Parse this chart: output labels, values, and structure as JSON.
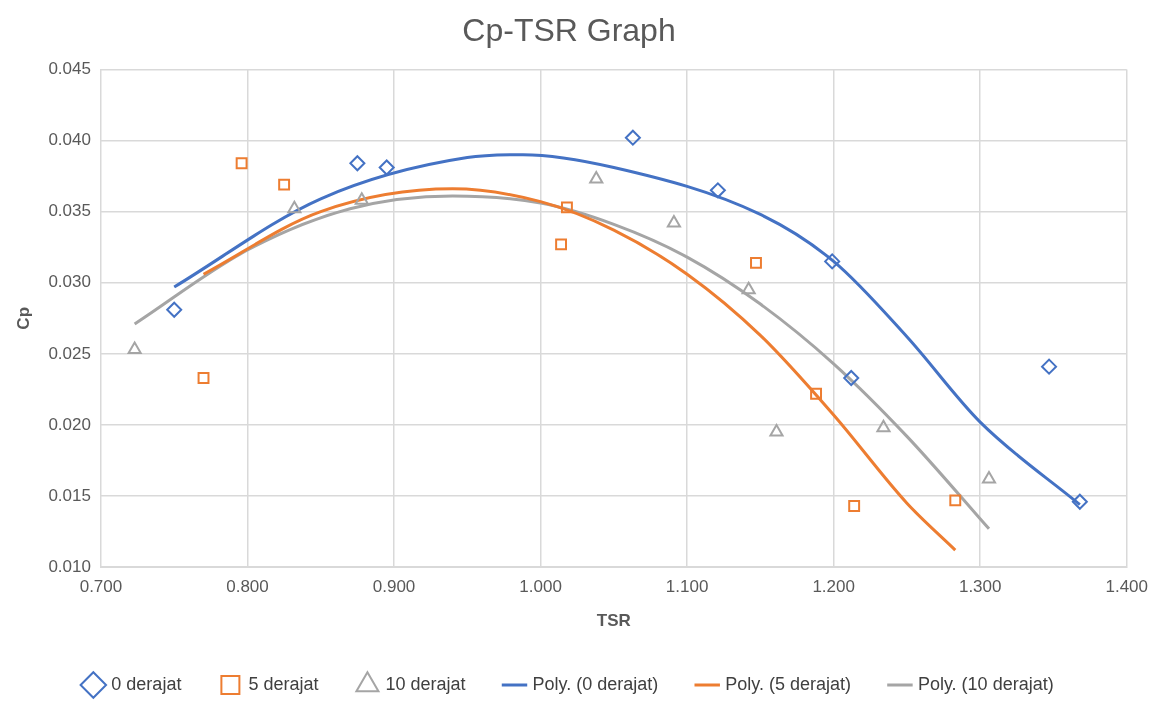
{
  "chart_data": {
    "type": "scatter",
    "title": "Cp-TSR Graph",
    "xlabel": "TSR",
    "ylabel": "Cp",
    "xlim": [
      0.7,
      1.4
    ],
    "ylim": [
      0.01,
      0.045
    ],
    "xticks": [
      {
        "value": 0.7,
        "label": "0.700"
      },
      {
        "value": 0.8,
        "label": "0.800"
      },
      {
        "value": 0.9,
        "label": "0.900"
      },
      {
        "value": 1.0,
        "label": "1.000"
      },
      {
        "value": 1.1,
        "label": "1.100"
      },
      {
        "value": 1.2,
        "label": "1.200"
      },
      {
        "value": 1.3,
        "label": "1.300"
      },
      {
        "value": 1.4,
        "label": "1.400"
      }
    ],
    "yticks": [
      {
        "value": 0.01,
        "label": "0.010"
      },
      {
        "value": 0.015,
        "label": "0.015"
      },
      {
        "value": 0.02,
        "label": "0.020"
      },
      {
        "value": 0.025,
        "label": "0.025"
      },
      {
        "value": 0.03,
        "label": "0.030"
      },
      {
        "value": 0.035,
        "label": "0.035"
      },
      {
        "value": 0.04,
        "label": "0.040"
      },
      {
        "value": 0.045,
        "label": "0.045"
      }
    ],
    "grid": true,
    "legend": "bottom",
    "series": [
      {
        "name": "0 derajat",
        "marker": "diamond",
        "color": "#4472c4",
        "x": [
          0.75,
          0.875,
          0.895,
          1.063,
          1.121,
          1.199,
          1.212,
          1.347,
          1.368
        ],
        "values": [
          0.0281,
          0.0384,
          0.0381,
          0.0402,
          0.0365,
          0.0315,
          0.0233,
          0.0241,
          0.0146
        ]
      },
      {
        "name": "5 derajat",
        "marker": "square",
        "color": "#ed7d31",
        "x": [
          0.77,
          0.796,
          0.825,
          1.014,
          1.018,
          1.147,
          1.188,
          1.214,
          1.283
        ],
        "values": [
          0.0233,
          0.0384,
          0.0369,
          0.0327,
          0.0353,
          0.0314,
          0.0222,
          0.0143,
          0.0147
        ]
      },
      {
        "name": "10 derajat",
        "marker": "triangle",
        "color": "#a5a5a5",
        "x": [
          0.723,
          0.832,
          0.878,
          1.038,
          1.091,
          1.142,
          1.161,
          1.234,
          1.306
        ],
        "values": [
          0.0253,
          0.0352,
          0.0358,
          0.0373,
          0.0342,
          0.0295,
          0.0195,
          0.0198,
          0.0162
        ]
      },
      {
        "name": "Poly. (0 derajat)",
        "type": "line",
        "marker": "none",
        "color": "#4472c4",
        "x": [
          0.75,
          0.85,
          0.95,
          0.988,
          1.05,
          1.15,
          1.2,
          1.25,
          1.3,
          1.368
        ],
        "values": [
          0.0297,
          0.0359,
          0.0388,
          0.039,
          0.0381,
          0.0348,
          0.0315,
          0.0262,
          0.0202,
          0.0144
        ]
      },
      {
        "name": "Poly. (5 derajat)",
        "type": "line",
        "marker": "none",
        "color": "#ed7d31",
        "x": [
          0.77,
          0.85,
          0.94,
          1.0,
          1.05,
          1.1,
          1.15,
          1.2,
          1.25,
          1.283
        ],
        "values": [
          0.0306,
          0.035,
          0.0366,
          0.0357,
          0.0337,
          0.0306,
          0.0263,
          0.0207,
          0.0145,
          0.0112
        ]
      },
      {
        "name": "Poly. (10 derajat)",
        "type": "line",
        "marker": "none",
        "color": "#a5a5a5",
        "x": [
          0.723,
          0.8,
          0.87,
          0.94,
          1.0,
          1.05,
          1.1,
          1.15,
          1.2,
          1.25,
          1.306
        ],
        "values": [
          0.0271,
          0.0323,
          0.0352,
          0.0361,
          0.0356,
          0.0341,
          0.0318,
          0.0285,
          0.0243,
          0.0192,
          0.0127
        ]
      }
    ]
  }
}
